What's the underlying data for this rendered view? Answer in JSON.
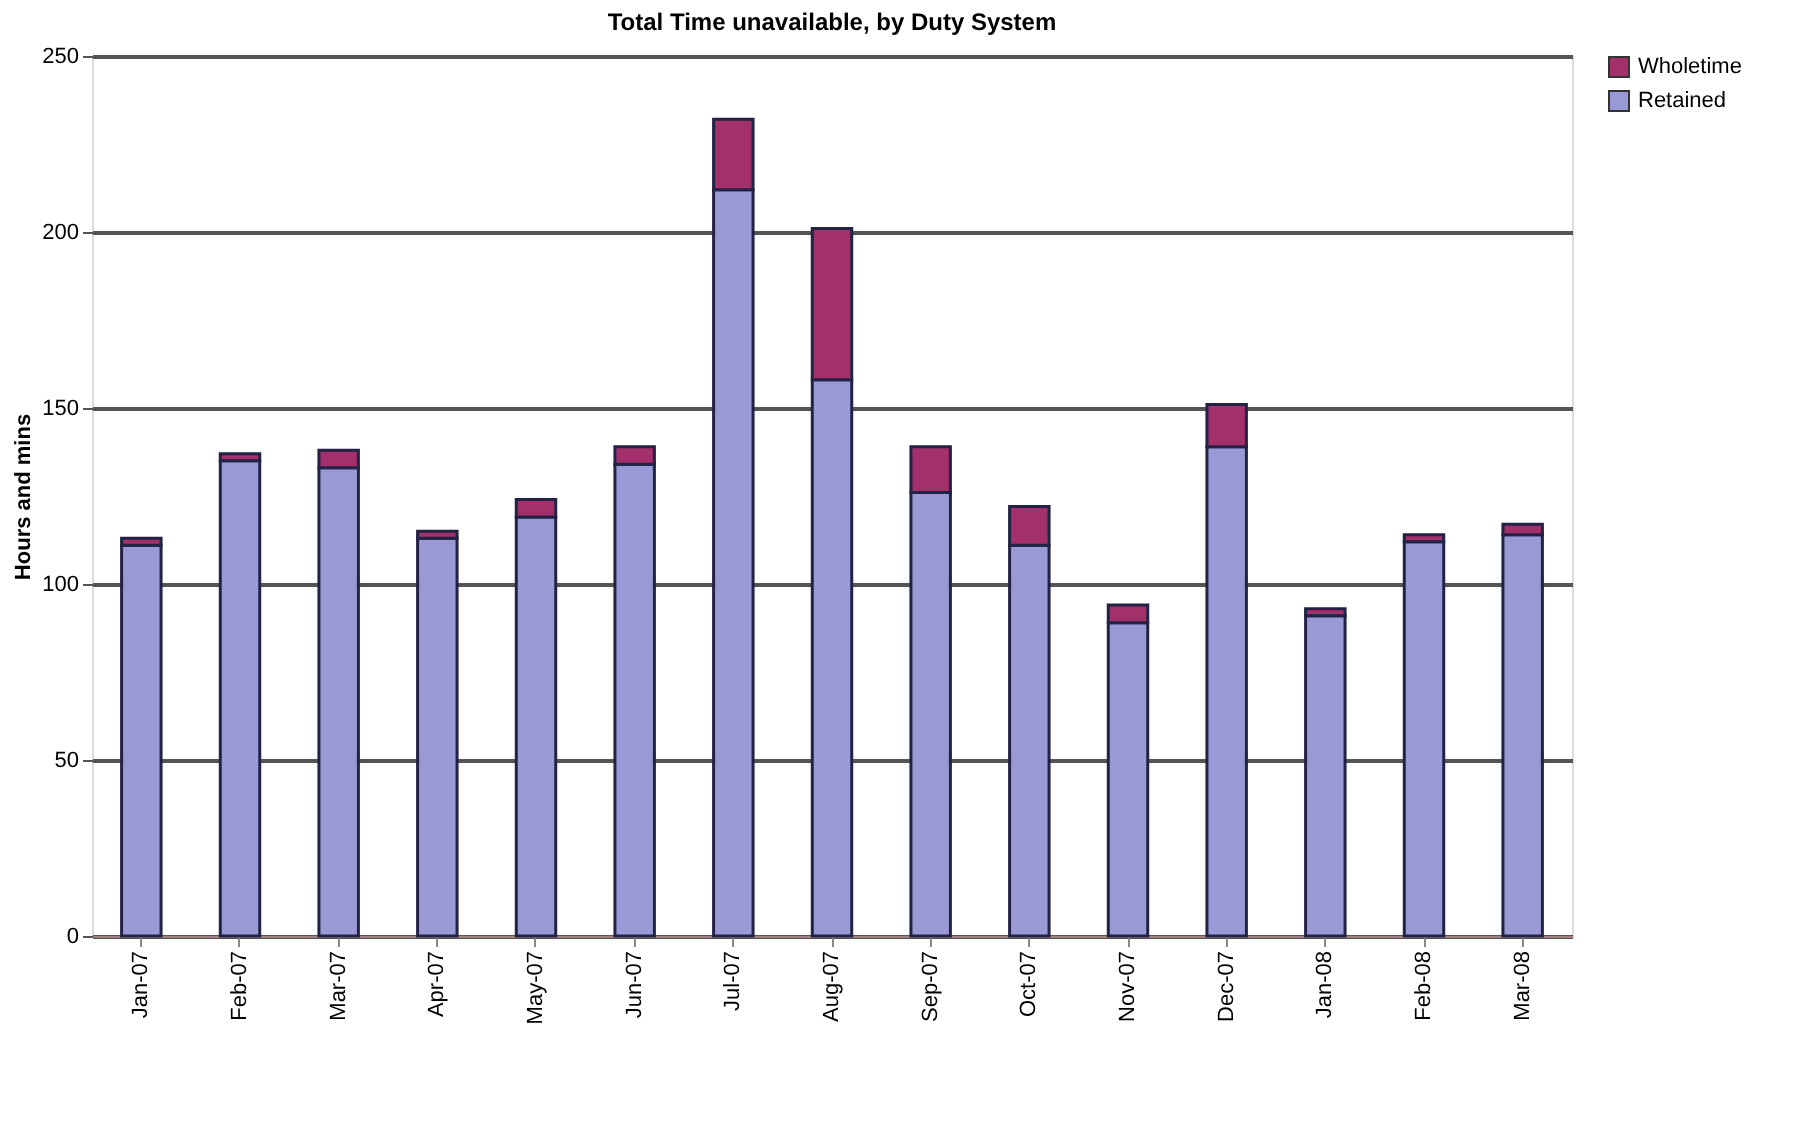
{
  "chart_data": {
    "type": "bar",
    "title": "Total Time unavailable, by Duty System",
    "ylabel": "Hours and mins",
    "categories": [
      "Jan-07",
      "Feb-07",
      "Mar-07",
      "Apr-07",
      "May-07",
      "Jun-07",
      "Jul-07",
      "Aug-07",
      "Sep-07",
      "Oct-07",
      "Nov-07",
      "Dec-07",
      "Jan-08",
      "Feb-08",
      "Mar-08"
    ],
    "stacked": true,
    "series": [
      {
        "name": "Retained",
        "color": "#9999d6",
        "values": [
          111,
          135,
          133,
          113,
          119,
          134,
          212,
          158,
          126,
          111,
          89,
          139,
          91,
          112,
          114
        ]
      },
      {
        "name": "Wholetime",
        "color": "#a3306b",
        "values": [
          2,
          2,
          5,
          2,
          5,
          5,
          20,
          43,
          13,
          11,
          5,
          12,
          2,
          2,
          3
        ]
      }
    ],
    "ylim": [
      0,
      250
    ],
    "yticks": [
      0,
      50,
      100,
      150,
      200,
      250
    ],
    "grid": "y",
    "legend": "right"
  }
}
